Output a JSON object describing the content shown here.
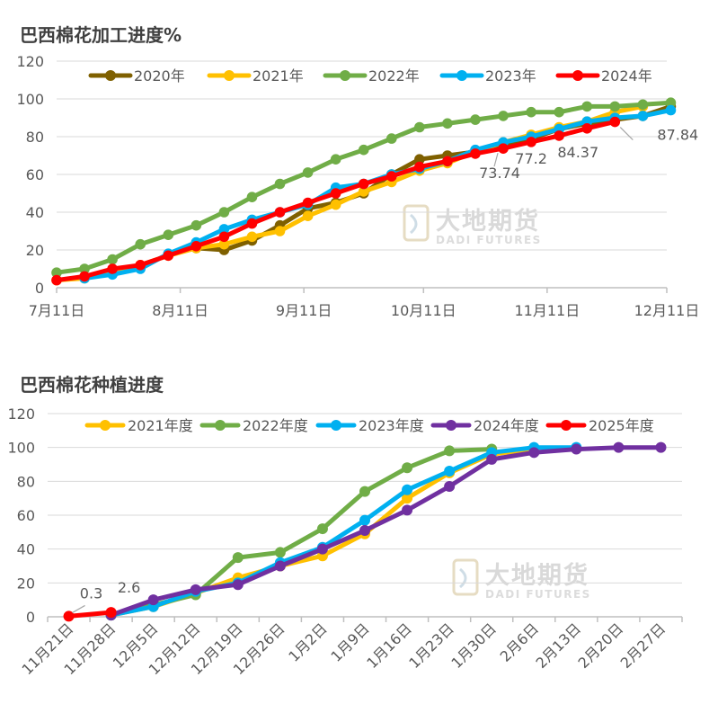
{
  "chart_data": [
    {
      "type": "line",
      "title": "巴西棉花加工进度%",
      "xlabel": "",
      "ylabel": "",
      "ylim": [
        0,
        120
      ],
      "yticks": [
        0,
        20,
        40,
        60,
        80,
        100,
        120
      ],
      "x_tick_labels": [
        "7月11日",
        "8月11日",
        "9月11日",
        "10月11日",
        "11月11日",
        "12月11日"
      ],
      "x_tick_days": [
        0,
        31,
        62,
        92,
        123,
        153
      ],
      "grid": true,
      "legend_position": "top",
      "watermark": {
        "cn": "大地期货",
        "en": "DADI FUTURES"
      },
      "series": [
        {
          "name": "2020年",
          "color": "#7f6000",
          "points": [
            [
              35,
              21
            ],
            [
              42,
              20
            ],
            [
              49,
              25
            ],
            [
              56,
              33
            ],
            [
              63,
              42
            ],
            [
              70,
              45
            ],
            [
              77,
              50
            ],
            [
              84,
              60
            ],
            [
              91,
              68
            ],
            [
              98,
              70
            ],
            [
              105,
              72
            ],
            [
              112,
              75
            ],
            [
              119,
              79
            ],
            [
              126,
              84
            ],
            [
              133,
              87
            ],
            [
              140,
              89
            ],
            [
              147,
              91
            ],
            [
              154,
              96
            ]
          ]
        },
        {
          "name": "2021年",
          "color": "#ffc000",
          "points": [
            [
              0,
              4
            ],
            [
              7,
              5
            ],
            [
              14,
              9
            ],
            [
              21,
              12
            ],
            [
              28,
              17
            ],
            [
              35,
              21
            ],
            [
              42,
              23
            ],
            [
              49,
              27
            ],
            [
              56,
              30
            ],
            [
              63,
              38
            ],
            [
              70,
              44
            ],
            [
              77,
              51
            ],
            [
              84,
              56
            ],
            [
              91,
              62
            ],
            [
              98,
              66
            ],
            [
              105,
              72
            ],
            [
              112,
              77
            ],
            [
              119,
              81
            ],
            [
              126,
              85
            ],
            [
              133,
              88
            ],
            [
              140,
              93
            ],
            [
              147,
              96
            ]
          ]
        },
        {
          "name": "2022年",
          "color": "#70ad47",
          "points": [
            [
              0,
              8
            ],
            [
              7,
              10
            ],
            [
              14,
              15
            ],
            [
              21,
              23
            ],
            [
              28,
              28
            ],
            [
              35,
              33
            ],
            [
              42,
              40
            ],
            [
              49,
              48
            ],
            [
              56,
              55
            ],
            [
              63,
              61
            ],
            [
              70,
              68
            ],
            [
              77,
              73
            ],
            [
              84,
              79
            ],
            [
              91,
              85
            ],
            [
              98,
              87
            ],
            [
              105,
              89
            ],
            [
              112,
              91
            ],
            [
              119,
              93
            ],
            [
              126,
              93
            ],
            [
              133,
              96
            ],
            [
              140,
              96
            ],
            [
              147,
              97
            ],
            [
              154,
              98
            ]
          ]
        },
        {
          "name": "2023年",
          "color": "#00b0f0",
          "points": [
            [
              7,
              5
            ],
            [
              14,
              7
            ],
            [
              21,
              10
            ],
            [
              28,
              18
            ],
            [
              35,
              24
            ],
            [
              42,
              31
            ],
            [
              49,
              36
            ],
            [
              56,
              40
            ],
            [
              63,
              44
            ],
            [
              70,
              53
            ],
            [
              77,
              55
            ],
            [
              84,
              60
            ],
            [
              91,
              63
            ],
            [
              98,
              67
            ],
            [
              105,
              73
            ],
            [
              112,
              77
            ],
            [
              119,
              80
            ],
            [
              126,
              84
            ],
            [
              133,
              88
            ],
            [
              140,
              90
            ],
            [
              147,
              91
            ],
            [
              154,
              94
            ]
          ]
        },
        {
          "name": "2024年",
          "color": "#ff0000",
          "points": [
            [
              0,
              4
            ],
            [
              7,
              6
            ],
            [
              14,
              10
            ],
            [
              21,
              12
            ],
            [
              28,
              17
            ],
            [
              35,
              22
            ],
            [
              42,
              27
            ],
            [
              49,
              34
            ],
            [
              56,
              40
            ],
            [
              63,
              45
            ],
            [
              70,
              50
            ],
            [
              77,
              55
            ],
            [
              84,
              59
            ],
            [
              91,
              64
            ],
            [
              98,
              67
            ],
            [
              105,
              71
            ],
            [
              112,
              73.74
            ],
            [
              119,
              77.2
            ],
            [
              126,
              80.5
            ],
            [
              133,
              84.37
            ],
            [
              140,
              87.84
            ]
          ]
        }
      ],
      "data_labels": [
        {
          "text": "73.74",
          "series": "2024年",
          "day": 112,
          "value": 73.74
        },
        {
          "text": "77.2",
          "series": "2024年",
          "day": 119,
          "value": 77.2
        },
        {
          "text": "84.37",
          "series": "2024年",
          "day": 133,
          "value": 84.37
        },
        {
          "text": "87.84",
          "series": "2024年",
          "day": 140,
          "value": 87.84
        }
      ]
    },
    {
      "type": "line",
      "title": "巴西棉花种植进度",
      "xlabel": "",
      "ylabel": "",
      "ylim": [
        0,
        120
      ],
      "yticks": [
        0,
        20,
        40,
        60,
        80,
        100,
        120
      ],
      "categories": [
        "11月21日",
        "11月28日",
        "12月5日",
        "12月12日",
        "12月19日",
        "12月26日",
        "1月2日",
        "1月9日",
        "1月16日",
        "1月23日",
        "1月30日",
        "2月6日",
        "2月13日",
        "2月20日",
        "2月27日"
      ],
      "grid": true,
      "legend_position": "top",
      "watermark": {
        "cn": "大地期货",
        "en": "DADI FUTURES"
      },
      "series": [
        {
          "name": "2021年度",
          "color": "#ffc000",
          "values": [
            null,
            1,
            6,
            14,
            23,
            30,
            36,
            49,
            70,
            85,
            96,
            99,
            null,
            null,
            null
          ]
        },
        {
          "name": "2022年度",
          "color": "#70ad47",
          "values": [
            null,
            1,
            7,
            13,
            35,
            38,
            52,
            74,
            88,
            98,
            99,
            null,
            null,
            null,
            null
          ]
        },
        {
          "name": "2023年度",
          "color": "#00b0f0",
          "values": [
            null,
            1,
            6,
            15,
            20,
            32,
            41,
            57,
            75,
            86,
            97,
            100,
            100,
            null,
            null
          ]
        },
        {
          "name": "2024年度",
          "color": "#7030a0",
          "values": [
            null,
            1,
            10,
            16,
            19,
            30,
            40,
            51,
            63,
            77,
            93,
            97,
            99,
            100,
            100
          ]
        },
        {
          "name": "2025年度",
          "color": "#ff0000",
          "values": [
            0.3,
            2.6,
            null,
            null,
            null,
            null,
            null,
            null,
            null,
            null,
            null,
            null,
            null,
            null,
            null
          ]
        }
      ],
      "data_labels": [
        {
          "text": "0.3",
          "series": "2025年度",
          "category": "11月21日",
          "value": 0.3
        },
        {
          "text": "2.6",
          "series": "2025年度",
          "category": "11月28日",
          "value": 2.6
        }
      ]
    }
  ]
}
